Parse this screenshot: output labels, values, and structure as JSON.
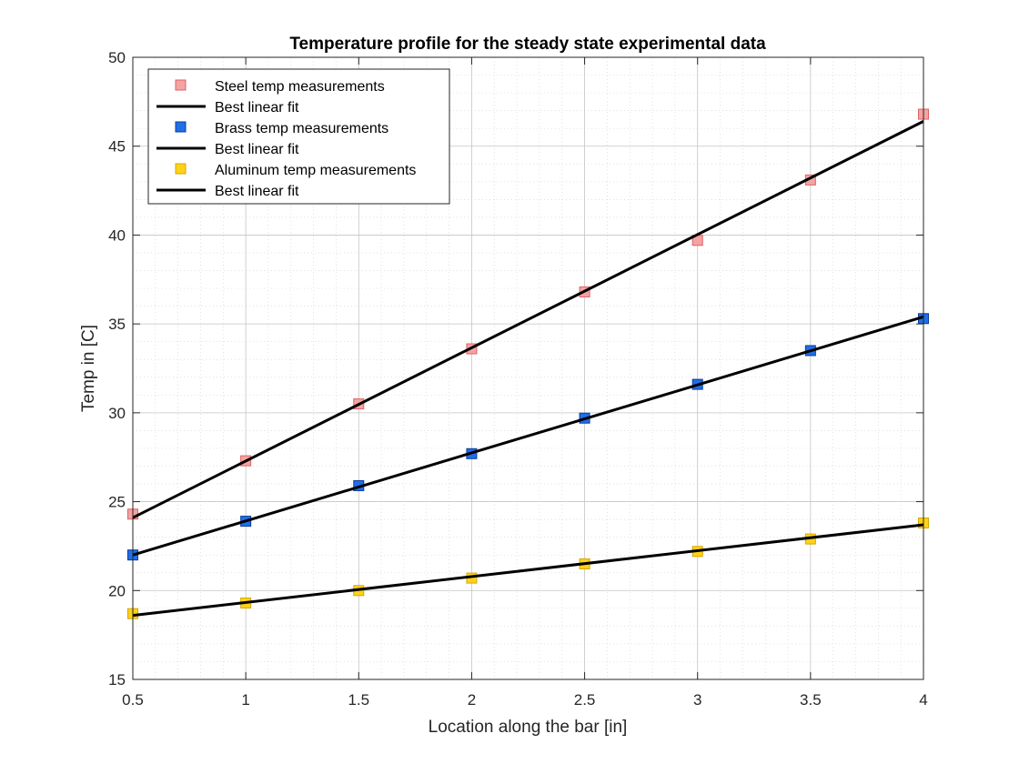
{
  "chart_data": {
    "type": "scatter",
    "title": "Temperature profile for the steady state experimental data",
    "xlabel": "Location along the bar [in]",
    "ylabel": "Temp in [C]",
    "xlim": [
      0.5,
      4
    ],
    "ylim": [
      15,
      50
    ],
    "xticks": [
      0.5,
      1,
      1.5,
      2,
      2.5,
      3,
      3.5,
      4
    ],
    "xtick_labels": [
      "0.5",
      "1",
      "1.5",
      "2",
      "2.5",
      "3",
      "3.5",
      "4"
    ],
    "yticks": [
      15,
      20,
      25,
      30,
      35,
      40,
      45,
      50
    ],
    "ytick_labels": [
      "15",
      "20",
      "25",
      "30",
      "35",
      "40",
      "45",
      "50"
    ],
    "grid": true,
    "minor_grid": true,
    "legend_position": "top-left",
    "series": [
      {
        "name": "Steel temp measurements",
        "kind": "markers",
        "marker": "square",
        "color": "#f4a3a3",
        "edge_color": "#e06060",
        "x": [
          0.5,
          1,
          1.5,
          2,
          2.5,
          3,
          3.5,
          4
        ],
        "y": [
          24.3,
          27.3,
          30.5,
          33.6,
          36.8,
          39.7,
          43.1,
          46.8
        ]
      },
      {
        "name": "Best linear fit",
        "kind": "line",
        "color": "#000000",
        "x": [
          0.5,
          4
        ],
        "y": [
          24.1,
          46.4
        ]
      },
      {
        "name": "Brass temp measurements",
        "kind": "markers",
        "marker": "square",
        "color": "#1f6fe8",
        "edge_color": "#0a3c9a",
        "x": [
          0.5,
          1,
          1.5,
          2,
          2.5,
          3,
          3.5,
          4
        ],
        "y": [
          22.0,
          23.9,
          25.9,
          27.7,
          29.7,
          31.6,
          33.5,
          35.3
        ]
      },
      {
        "name": "Best linear fit",
        "kind": "line",
        "color": "#000000",
        "x": [
          0.5,
          4
        ],
        "y": [
          22.0,
          35.4
        ]
      },
      {
        "name": "Aluminum temp measurements",
        "kind": "markers",
        "marker": "square",
        "color": "#ffd21a",
        "edge_color": "#d4a800",
        "x": [
          0.5,
          1,
          1.5,
          2,
          2.5,
          3,
          3.5,
          4
        ],
        "y": [
          18.7,
          19.3,
          20.0,
          20.7,
          21.5,
          22.2,
          22.9,
          23.8
        ]
      },
      {
        "name": "Best linear fit",
        "kind": "line",
        "color": "#000000",
        "x": [
          0.5,
          4
        ],
        "y": [
          18.6,
          23.7
        ]
      }
    ]
  }
}
